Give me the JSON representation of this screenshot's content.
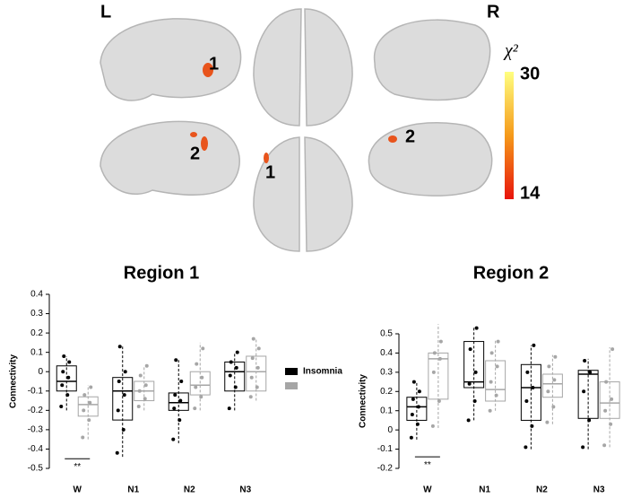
{
  "brain_figure": {
    "hemisphere_labels": [
      "L",
      "R"
    ],
    "region_labels": [
      "1",
      "2",
      "2",
      "1"
    ],
    "colorbar": {
      "label": "χ²",
      "range": [
        14,
        30
      ],
      "ticks": [
        14,
        30
      ],
      "colors": [
        "#e8140c",
        "#ffff80"
      ]
    }
  },
  "chart_data": [
    {
      "type": "box",
      "title": "Region 1",
      "ylabel": "Connectivity",
      "categories": [
        "W",
        "N1",
        "N2",
        "N3"
      ],
      "ylim": [
        -0.5,
        0.4
      ],
      "yticks": [
        -0.5,
        -0.4,
        -0.3,
        -0.2,
        -0.1,
        0,
        0.1,
        0.2,
        0.3,
        0.4
      ],
      "series": [
        {
          "name": "Insomnia",
          "color": "#000000",
          "values": [
            [
              -0.2,
              -0.1,
              -0.05,
              0.03,
              0.08
            ],
            [
              -0.44,
              -0.25,
              -0.1,
              -0.03,
              0.13
            ],
            [
              -0.37,
              -0.2,
              -0.16,
              -0.11,
              0.06
            ],
            [
              -0.2,
              -0.1,
              0.0,
              0.05,
              0.1
            ]
          ],
          "points": [
            [
              -0.18,
              -0.12,
              -0.07,
              -0.03,
              0.0,
              0.05,
              0.08
            ],
            [
              -0.42,
              -0.3,
              -0.2,
              -0.12,
              -0.05,
              0.0,
              0.13
            ],
            [
              -0.35,
              -0.25,
              -0.19,
              -0.15,
              -0.12,
              -0.05,
              0.06
            ],
            [
              -0.19,
              -0.08,
              -0.02,
              0.02,
              0.05,
              0.1
            ]
          ]
        },
        {
          "color": "#a6a6a6",
          "values": [
            [
              -0.35,
              -0.23,
              -0.17,
              -0.13,
              -0.07
            ],
            [
              -0.2,
              -0.15,
              -0.1,
              -0.05,
              0.03
            ],
            [
              -0.2,
              -0.12,
              -0.07,
              0.0,
              0.15
            ],
            [
              -0.15,
              -0.1,
              0.0,
              0.08,
              0.17
            ]
          ],
          "points": [
            [
              -0.34,
              -0.25,
              -0.2,
              -0.16,
              -0.12,
              -0.08
            ],
            [
              -0.18,
              -0.14,
              -0.1,
              -0.07,
              -0.02,
              0.03
            ],
            [
              -0.19,
              -0.13,
              -0.08,
              -0.03,
              0.04,
              0.12
            ],
            [
              -0.13,
              -0.08,
              -0.03,
              0.02,
              0.07,
              0.12,
              0.17
            ]
          ]
        }
      ],
      "annotation": {
        "text": "**",
        "category": 0,
        "y": -0.45
      }
    },
    {
      "type": "box",
      "title": "Region 2",
      "ylabel": "Connectivity",
      "categories": [
        "W",
        "N1",
        "N2",
        "N3"
      ],
      "ylim": [
        -0.2,
        0.5
      ],
      "yticks": [
        -0.2,
        -0.1,
        0,
        0.1,
        0.2,
        0.3,
        0.4,
        0.5
      ],
      "series": [
        {
          "color": "#000000",
          "values": [
            [
              -0.05,
              0.05,
              0.12,
              0.17,
              0.25
            ],
            [
              0.05,
              0.22,
              0.25,
              0.46,
              0.54
            ],
            [
              -0.1,
              0.05,
              0.22,
              0.34,
              0.44
            ],
            [
              -0.1,
              0.06,
              0.29,
              0.31,
              0.37
            ]
          ],
          "points": [
            [
              -0.04,
              0.03,
              0.08,
              0.12,
              0.16,
              0.2,
              0.25
            ],
            [
              0.05,
              0.15,
              0.24,
              0.3,
              0.42,
              0.53
            ],
            [
              -0.09,
              0.02,
              0.15,
              0.22,
              0.3,
              0.44
            ],
            [
              -0.09,
              0.05,
              0.2,
              0.3,
              0.36
            ]
          ]
        },
        {
          "color": "#a6a6a6",
          "values": [
            [
              0.01,
              0.16,
              0.37,
              0.4,
              0.55
            ],
            [
              0.1,
              0.15,
              0.21,
              0.36,
              0.47
            ],
            [
              0.03,
              0.17,
              0.24,
              0.29,
              0.39
            ],
            [
              -0.09,
              0.06,
              0.14,
              0.25,
              0.43
            ]
          ],
          "points": [
            [
              0.02,
              0.15,
              0.3,
              0.37,
              0.4,
              0.46
            ],
            [
              0.1,
              0.18,
              0.25,
              0.33,
              0.4,
              0.46
            ],
            [
              0.04,
              0.12,
              0.2,
              0.26,
              0.33,
              0.38
            ],
            [
              -0.08,
              0.03,
              0.1,
              0.16,
              0.25,
              0.42
            ]
          ]
        }
      ],
      "annotation": {
        "text": "**",
        "category": 0,
        "y": -0.14
      }
    }
  ]
}
